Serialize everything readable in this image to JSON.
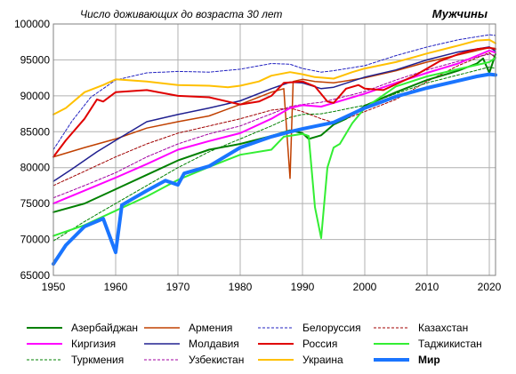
{
  "chart_data": {
    "type": "line",
    "title": "Число доживающих до возраста 30 лет",
    "subtitle": "Мужчины",
    "xlim": [
      1950,
      2021
    ],
    "ylim": [
      65000,
      100000
    ],
    "x_ticks": [
      1950,
      1960,
      1970,
      1980,
      1990,
      2000,
      2010,
      2020
    ],
    "y_ticks": [
      65000,
      70000,
      75000,
      80000,
      85000,
      90000,
      95000,
      100000
    ],
    "grid": true,
    "legend_position": "bottom",
    "series": [
      {
        "name": "Азербайджан",
        "color": "#008000",
        "style": "solid",
        "width": 2,
        "points": [
          [
            1950,
            73800
          ],
          [
            1955,
            75000
          ],
          [
            1960,
            77000
          ],
          [
            1965,
            79000
          ],
          [
            1970,
            81000
          ],
          [
            1975,
            82500
          ],
          [
            1980,
            83300
          ],
          [
            1985,
            84400
          ],
          [
            1988,
            85200
          ],
          [
            1990,
            84800
          ],
          [
            1991,
            84000
          ],
          [
            1993,
            84500
          ],
          [
            1995,
            86000
          ],
          [
            1997,
            86800
          ],
          [
            2000,
            88600
          ],
          [
            2005,
            90500
          ],
          [
            2010,
            92200
          ],
          [
            2015,
            93500
          ],
          [
            2018,
            94500
          ],
          [
            2019,
            95200
          ],
          [
            2020,
            93200
          ],
          [
            2021,
            95800
          ]
        ]
      },
      {
        "name": "Армения",
        "color": "#c04000",
        "style": "solid",
        "width": 1.5,
        "points": [
          [
            1950,
            81500
          ],
          [
            1955,
            82800
          ],
          [
            1960,
            84000
          ],
          [
            1965,
            85500
          ],
          [
            1970,
            86400
          ],
          [
            1975,
            87200
          ],
          [
            1980,
            88800
          ],
          [
            1985,
            90500
          ],
          [
            1987,
            91000
          ],
          [
            1988,
            78500
          ],
          [
            1988.5,
            92000
          ],
          [
            1990,
            92300
          ],
          [
            1992,
            92000
          ],
          [
            1995,
            91800
          ],
          [
            2000,
            92500
          ],
          [
            2005,
            93500
          ],
          [
            2010,
            94700
          ],
          [
            2015,
            95700
          ],
          [
            2020,
            96700
          ],
          [
            2021,
            96600
          ]
        ]
      },
      {
        "name": "Белоруссия",
        "color": "#2020c0",
        "style": "dashed",
        "width": 1,
        "points": [
          [
            1950,
            82500
          ],
          [
            1953,
            86500
          ],
          [
            1956,
            89800
          ],
          [
            1960,
            92200
          ],
          [
            1965,
            93200
          ],
          [
            1970,
            93400
          ],
          [
            1975,
            93300
          ],
          [
            1980,
            93700
          ],
          [
            1985,
            94500
          ],
          [
            1988,
            94400
          ],
          [
            1990,
            93800
          ],
          [
            1993,
            93300
          ],
          [
            1995,
            93500
          ],
          [
            2000,
            94200
          ],
          [
            2005,
            95600
          ],
          [
            2010,
            96800
          ],
          [
            2015,
            97800
          ],
          [
            2020,
            98500
          ],
          [
            2021,
            98400
          ]
        ]
      },
      {
        "name": "Казахстан",
        "color": "#a00000",
        "style": "dashed",
        "width": 1,
        "points": [
          [
            1950,
            77500
          ],
          [
            1955,
            79500
          ],
          [
            1960,
            81500
          ],
          [
            1965,
            83300
          ],
          [
            1970,
            84800
          ],
          [
            1975,
            85800
          ],
          [
            1980,
            86800
          ],
          [
            1985,
            88000
          ],
          [
            1988,
            88300
          ],
          [
            1990,
            87800
          ],
          [
            1993,
            86800
          ],
          [
            1995,
            86300
          ],
          [
            1997,
            86800
          ],
          [
            2000,
            87800
          ],
          [
            2005,
            89500
          ],
          [
            2010,
            92000
          ],
          [
            2015,
            94200
          ],
          [
            2020,
            96000
          ],
          [
            2021,
            95300
          ]
        ]
      },
      {
        "name": "Киргизия",
        "color": "#ff00ff",
        "style": "solid",
        "width": 2,
        "points": [
          [
            1950,
            75000
          ],
          [
            1955,
            76800
          ],
          [
            1960,
            78600
          ],
          [
            1965,
            80500
          ],
          [
            1970,
            82500
          ],
          [
            1975,
            83700
          ],
          [
            1980,
            84800
          ],
          [
            1985,
            86800
          ],
          [
            1988,
            88300
          ],
          [
            1990,
            88700
          ],
          [
            1993,
            88500
          ],
          [
            1995,
            89000
          ],
          [
            2000,
            90300
          ],
          [
            2005,
            91800
          ],
          [
            2010,
            93200
          ],
          [
            2015,
            94500
          ],
          [
            2020,
            96300
          ],
          [
            2021,
            96000
          ]
        ]
      },
      {
        "name": "Молдавия",
        "color": "#202090",
        "style": "solid",
        "width": 1.5,
        "points": [
          [
            1950,
            78100
          ],
          [
            1953,
            79800
          ],
          [
            1957,
            82200
          ],
          [
            1960,
            83800
          ],
          [
            1965,
            86400
          ],
          [
            1970,
            87400
          ],
          [
            1975,
            88300
          ],
          [
            1980,
            89300
          ],
          [
            1985,
            91000
          ],
          [
            1988,
            91900
          ],
          [
            1990,
            91800
          ],
          [
            1993,
            91000
          ],
          [
            1995,
            91200
          ],
          [
            2000,
            92600
          ],
          [
            2005,
            93600
          ],
          [
            2010,
            95000
          ],
          [
            2015,
            96100
          ],
          [
            2020,
            96800
          ],
          [
            2021,
            96200
          ]
        ]
      },
      {
        "name": "Россия",
        "color": "#e00000",
        "style": "solid",
        "width": 2,
        "points": [
          [
            1950,
            81500
          ],
          [
            1952,
            83800
          ],
          [
            1955,
            86800
          ],
          [
            1957,
            89500
          ],
          [
            1958,
            89200
          ],
          [
            1960,
            90500
          ],
          [
            1965,
            90800
          ],
          [
            1970,
            90000
          ],
          [
            1975,
            89800
          ],
          [
            1980,
            88800
          ],
          [
            1983,
            89200
          ],
          [
            1985,
            90000
          ],
          [
            1987,
            91800
          ],
          [
            1990,
            92000
          ],
          [
            1992,
            91300
          ],
          [
            1994,
            89200
          ],
          [
            1995,
            89000
          ],
          [
            1997,
            91000
          ],
          [
            1999,
            91500
          ],
          [
            2000,
            91000
          ],
          [
            2003,
            90800
          ],
          [
            2005,
            91600
          ],
          [
            2008,
            92800
          ],
          [
            2010,
            93800
          ],
          [
            2012,
            94800
          ],
          [
            2015,
            95800
          ],
          [
            2018,
            96500
          ],
          [
            2020,
            96700
          ],
          [
            2021,
            96500
          ]
        ]
      },
      {
        "name": "Таджикистан",
        "color": "#33ee33",
        "style": "solid",
        "width": 2,
        "points": [
          [
            1950,
            70500
          ],
          [
            1955,
            72000
          ],
          [
            1960,
            74000
          ],
          [
            1965,
            76000
          ],
          [
            1970,
            78300
          ],
          [
            1975,
            80100
          ],
          [
            1980,
            81800
          ],
          [
            1985,
            82500
          ],
          [
            1987,
            84300
          ],
          [
            1990,
            84700
          ],
          [
            1991,
            84400
          ],
          [
            1992,
            74500
          ],
          [
            1993,
            70200
          ],
          [
            1994,
            80000
          ],
          [
            1995,
            82800
          ],
          [
            1996,
            83300
          ],
          [
            1998,
            86200
          ],
          [
            2000,
            88300
          ],
          [
            2005,
            91300
          ],
          [
            2010,
            92700
          ],
          [
            2015,
            93700
          ],
          [
            2020,
            94700
          ],
          [
            2021,
            95300
          ]
        ]
      },
      {
        "name": "Туркмения",
        "color": "#008000",
        "style": "dashed",
        "width": 1,
        "points": [
          [
            1950,
            69800
          ],
          [
            1955,
            72500
          ],
          [
            1960,
            75000
          ],
          [
            1965,
            77500
          ],
          [
            1970,
            80000
          ],
          [
            1975,
            82200
          ],
          [
            1980,
            84000
          ],
          [
            1985,
            85800
          ],
          [
            1988,
            87000
          ],
          [
            1990,
            87400
          ],
          [
            1993,
            87500
          ],
          [
            1995,
            87800
          ],
          [
            2000,
            88700
          ],
          [
            2005,
            90300
          ],
          [
            2010,
            91800
          ],
          [
            2015,
            92900
          ],
          [
            2020,
            94000
          ],
          [
            2021,
            93800
          ]
        ]
      },
      {
        "name": "Узбекистан",
        "color": "#a000a0",
        "style": "dashed",
        "width": 1,
        "points": [
          [
            1950,
            75800
          ],
          [
            1955,
            77500
          ],
          [
            1960,
            79300
          ],
          [
            1965,
            81500
          ],
          [
            1970,
            83300
          ],
          [
            1975,
            84700
          ],
          [
            1980,
            85800
          ],
          [
            1985,
            87500
          ],
          [
            1988,
            88500
          ],
          [
            1990,
            88800
          ],
          [
            1993,
            89100
          ],
          [
            1995,
            89500
          ],
          [
            2000,
            90600
          ],
          [
            2005,
            92200
          ],
          [
            2010,
            93600
          ],
          [
            2015,
            94800
          ],
          [
            2020,
            95800
          ],
          [
            2021,
            95600
          ]
        ]
      },
      {
        "name": "Украина",
        "color": "#ffc000",
        "style": "solid",
        "width": 2,
        "points": [
          [
            1950,
            87400
          ],
          [
            1952,
            88300
          ],
          [
            1955,
            90500
          ],
          [
            1958,
            91500
          ],
          [
            1960,
            92300
          ],
          [
            1965,
            92000
          ],
          [
            1970,
            91500
          ],
          [
            1975,
            91400
          ],
          [
            1978,
            91200
          ],
          [
            1980,
            91400
          ],
          [
            1983,
            92000
          ],
          [
            1985,
            92800
          ],
          [
            1988,
            93300
          ],
          [
            1990,
            93000
          ],
          [
            1992,
            92600
          ],
          [
            1995,
            92400
          ],
          [
            1998,
            93300
          ],
          [
            2000,
            93800
          ],
          [
            2005,
            94700
          ],
          [
            2008,
            95400
          ],
          [
            2010,
            95900
          ],
          [
            2015,
            97000
          ],
          [
            2018,
            97700
          ],
          [
            2020,
            97800
          ],
          [
            2021,
            97300
          ]
        ]
      },
      {
        "name": "Мир",
        "color": "#1a75ff",
        "style": "solid",
        "width": 4,
        "points": [
          [
            1950,
            66600
          ],
          [
            1952,
            69200
          ],
          [
            1955,
            71800
          ],
          [
            1958,
            72900
          ],
          [
            1960,
            68200
          ],
          [
            1961,
            74800
          ],
          [
            1963,
            75800
          ],
          [
            1965,
            76800
          ],
          [
            1968,
            78200
          ],
          [
            1970,
            77600
          ],
          [
            1971,
            79200
          ],
          [
            1975,
            80200
          ],
          [
            1980,
            82800
          ],
          [
            1985,
            84300
          ],
          [
            1988,
            85000
          ],
          [
            1990,
            85400
          ],
          [
            1995,
            86300
          ],
          [
            2000,
            88300
          ],
          [
            2005,
            89900
          ],
          [
            2010,
            91100
          ],
          [
            2015,
            92100
          ],
          [
            2018,
            92700
          ],
          [
            2020,
            93000
          ],
          [
            2021,
            92900
          ]
        ]
      }
    ]
  }
}
